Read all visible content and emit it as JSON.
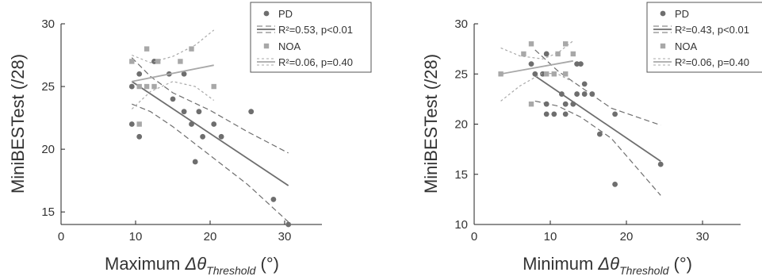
{
  "chart_data": [
    {
      "type": "scatter",
      "xlabel": "Maximum Δθ",
      "xlabel_sub": "Threshold",
      "xlabel_unit": "(°)",
      "ylabel": "MiniBESTest (/28)",
      "xlim": [
        0,
        35
      ],
      "ylim": [
        14,
        30
      ],
      "xticks": [
        0,
        10,
        20,
        30
      ],
      "yticks": [
        15,
        20,
        25,
        30
      ],
      "series": [
        {
          "name": "PD",
          "marker": "circle",
          "color": "#6e6e6e",
          "points": [
            [
              9.5,
              25
            ],
            [
              9.5,
              22
            ],
            [
              10.5,
              26
            ],
            [
              10.5,
              21
            ],
            [
              12.5,
              27
            ],
            [
              14.5,
              26
            ],
            [
              15,
              24
            ],
            [
              16.5,
              26
            ],
            [
              16.5,
              23
            ],
            [
              17.5,
              22
            ],
            [
              18,
              19
            ],
            [
              18.5,
              23
            ],
            [
              19,
              21
            ],
            [
              20.5,
              22
            ],
            [
              21.5,
              21
            ],
            [
              25.5,
              23
            ],
            [
              28.5,
              16
            ],
            [
              30.5,
              14
            ]
          ],
          "fit": {
            "x": [
              9.5,
              30.5
            ],
            "y": [
              25.4,
              17.1
            ]
          },
          "ci_upper": [
            [
              9.5,
              27.3
            ],
            [
              12,
              25.8
            ],
            [
              15,
              24.5
            ],
            [
              20,
              23.1
            ],
            [
              25,
              21.4
            ],
            [
              30.5,
              19.7
            ]
          ],
          "ci_lower": [
            [
              9.5,
              23.6
            ],
            [
              12,
              23
            ],
            [
              15,
              21.8
            ],
            [
              20,
              19.5
            ],
            [
              25,
              17.2
            ],
            [
              30.5,
              14.2
            ]
          ],
          "stats": "R²=0.53, p<0.01"
        },
        {
          "name": "NOA",
          "marker": "square",
          "color": "#a8a8a8",
          "points": [
            [
              9.5,
              27
            ],
            [
              10.5,
              25
            ],
            [
              10.5,
              22
            ],
            [
              11.5,
              28
            ],
            [
              11.5,
              25
            ],
            [
              12.5,
              25
            ],
            [
              13,
              27
            ],
            [
              16,
              27
            ],
            [
              17.5,
              28
            ],
            [
              20.5,
              25
            ]
          ],
          "fit": {
            "x": [
              9.5,
              20.5
            ],
            "y": [
              25.4,
              26.7
            ]
          },
          "ci_upper": [
            [
              9.5,
              27.5
            ],
            [
              12,
              26.9
            ],
            [
              15,
              27.4
            ],
            [
              18,
              28.3
            ],
            [
              20.5,
              29.5
            ]
          ],
          "ci_lower": [
            [
              9.5,
              23.2
            ],
            [
              12,
              24.6
            ],
            [
              15,
              25.4
            ],
            [
              18,
              25
            ],
            [
              20.5,
              23.9
            ]
          ],
          "stats": "R²=0.06, p=0.40"
        }
      ]
    },
    {
      "type": "scatter",
      "xlabel": "Minimum Δθ",
      "xlabel_sub": "Threshold",
      "xlabel_unit": "(°)",
      "ylabel": "MiniBESTest (/28)",
      "xlim": [
        0,
        35
      ],
      "ylim": [
        10,
        30
      ],
      "xticks": [
        0,
        10,
        20,
        30
      ],
      "yticks": [
        10,
        15,
        20,
        25,
        30
      ],
      "series": [
        {
          "name": "PD",
          "marker": "circle",
          "color": "#6e6e6e",
          "points": [
            [
              7.5,
              26
            ],
            [
              8,
              25
            ],
            [
              9,
              25
            ],
            [
              9.5,
              27
            ],
            [
              9.5,
              22
            ],
            [
              9.5,
              21
            ],
            [
              10.5,
              21
            ],
            [
              11.5,
              23
            ],
            [
              12,
              21
            ],
            [
              12,
              22
            ],
            [
              13,
              22
            ],
            [
              13.5,
              26
            ],
            [
              13.5,
              23
            ],
            [
              14,
              26
            ],
            [
              14.5,
              24
            ],
            [
              14.5,
              23
            ],
            [
              15.5,
              23
            ],
            [
              16.5,
              19
            ],
            [
              18.5,
              21
            ],
            [
              18.5,
              14
            ],
            [
              24.5,
              16
            ]
          ],
          "fit": {
            "x": [
              8,
              24.5
            ],
            "y": [
              24.8,
              16.3
            ]
          },
          "ci_upper": [
            [
              8,
              27.4
            ],
            [
              11,
              25.3
            ],
            [
              14,
              23.7
            ],
            [
              18,
              21.6
            ],
            [
              24.5,
              19.9
            ]
          ],
          "ci_lower": [
            [
              8,
              22.3
            ],
            [
              11,
              21.8
            ],
            [
              14,
              20.7
            ],
            [
              18,
              18.6
            ],
            [
              24.5,
              12.9
            ]
          ],
          "stats": "R²=0.43, p<0.01"
        },
        {
          "name": "NOA",
          "marker": "square",
          "color": "#a8a8a8",
          "points": [
            [
              3.5,
              25
            ],
            [
              6.5,
              27
            ],
            [
              7.5,
              28
            ],
            [
              7.5,
              22
            ],
            [
              9.5,
              25
            ],
            [
              10.5,
              25
            ],
            [
              11,
              27
            ],
            [
              12,
              25
            ],
            [
              12,
              28
            ],
            [
              13,
              27
            ]
          ],
          "fit": {
            "x": [
              3.5,
              13
            ],
            "y": [
              25,
              26.3
            ]
          },
          "ci_upper": [
            [
              3.5,
              27.6
            ],
            [
              6,
              26.8
            ],
            [
              9,
              26.5
            ],
            [
              11,
              27.1
            ],
            [
              13,
              28.3
            ]
          ],
          "ci_lower": [
            [
              3.5,
              22.3
            ],
            [
              6,
              23.8
            ],
            [
              9,
              25.1
            ],
            [
              11,
              25
            ],
            [
              13,
              24.2
            ]
          ],
          "stats": "R²=0.06, p=0.40"
        }
      ]
    }
  ]
}
